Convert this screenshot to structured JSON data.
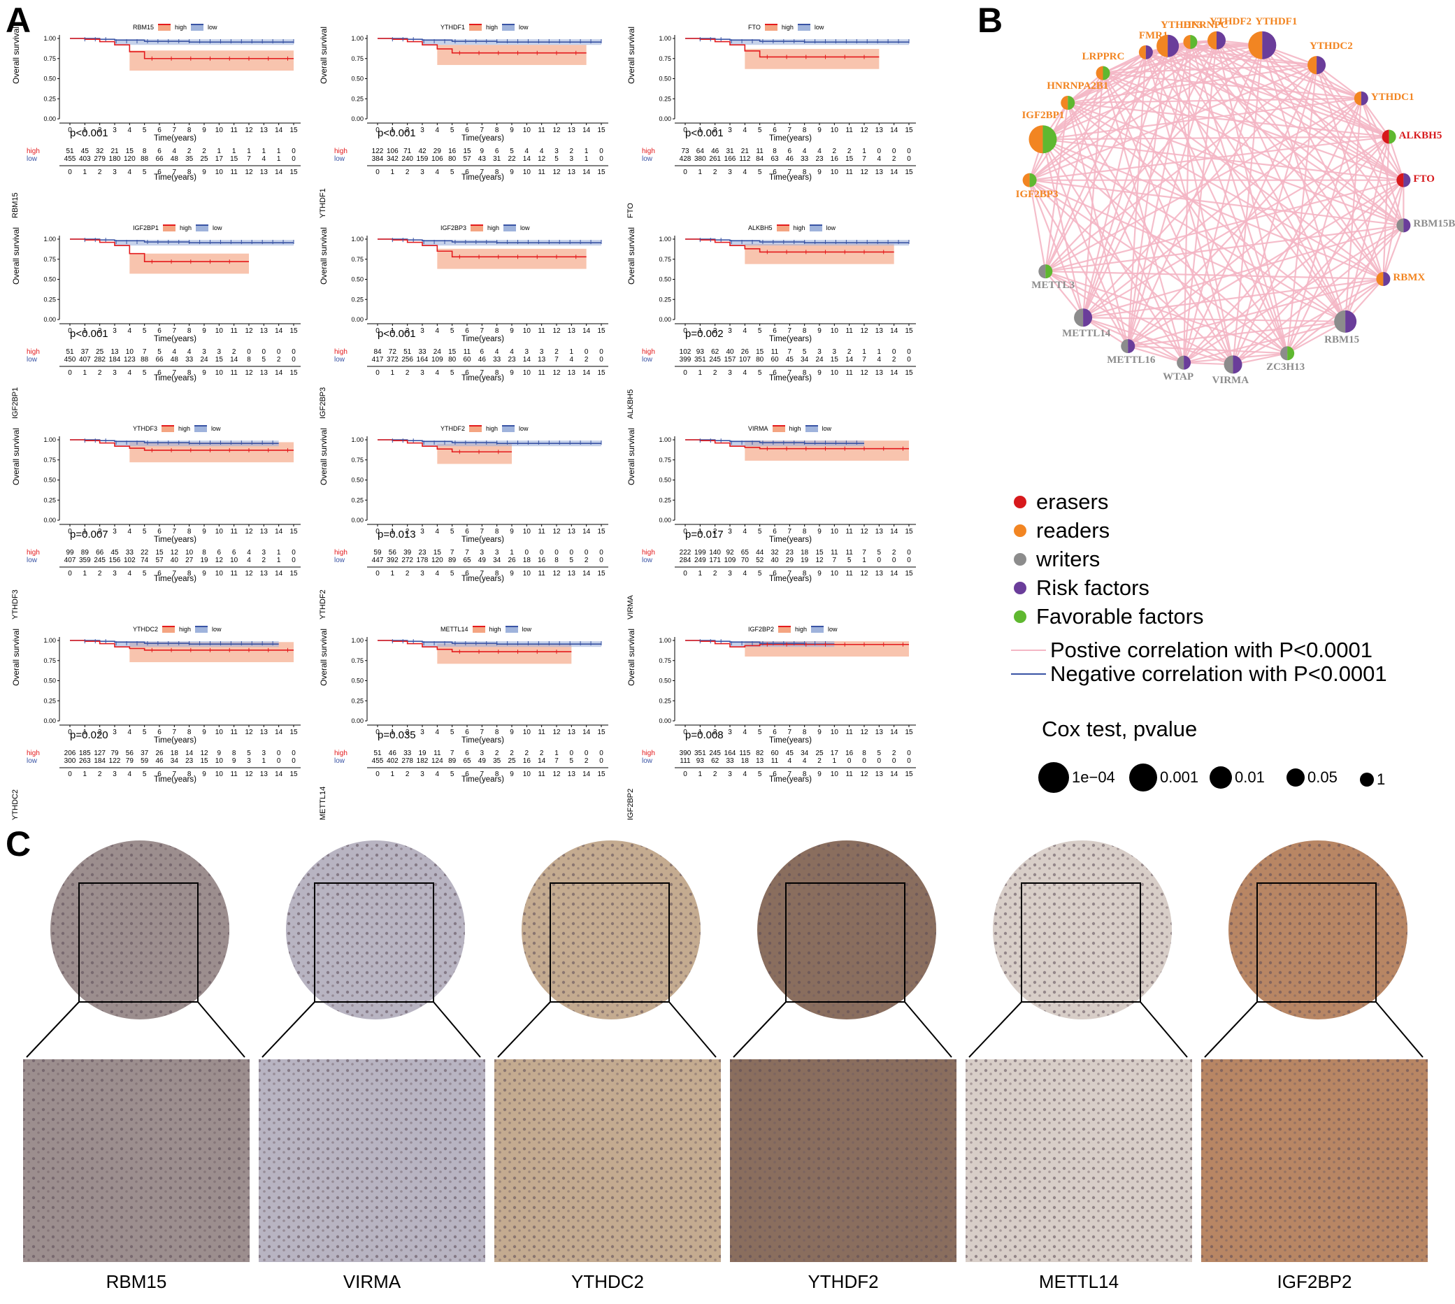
{
  "panels": {
    "a": "A",
    "b": "B",
    "c": "C"
  },
  "km_common": {
    "y_label": "Overall survival",
    "x_label": "Time(years)",
    "y_ticks": [
      "0.00",
      "0.25",
      "0.50",
      "0.75",
      "1.00"
    ],
    "x_ticks": [
      "0",
      "1",
      "2",
      "3",
      "4",
      "5",
      "6",
      "7",
      "8",
      "9",
      "10",
      "11",
      "12",
      "13",
      "14",
      "15"
    ],
    "legend_high": "high",
    "legend_low": "low",
    "risk_high_label": "high",
    "risk_low_label": "low",
    "high_color": "#e41a1c",
    "low_color": "#3953a4"
  },
  "km_plots": [
    {
      "gene": "RBM15",
      "pvalue": "p<0.001",
      "high_end": 0.75,
      "high_max_time": 15,
      "low_max_time": 15,
      "risk_high": [
        "51",
        "45",
        "32",
        "21",
        "15",
        "8",
        "6",
        "4",
        "2",
        "2",
        "1",
        "1",
        "1",
        "1",
        "1",
        "0"
      ],
      "risk_low": [
        "455",
        "403",
        "279",
        "180",
        "120",
        "88",
        "66",
        "48",
        "35",
        "25",
        "17",
        "15",
        "7",
        "4",
        "1",
        "0"
      ]
    },
    {
      "gene": "YTHDF1",
      "pvalue": "p<0.001",
      "high_end": 0.82,
      "high_max_time": 14,
      "low_max_time": 15,
      "risk_high": [
        "122",
        "106",
        "71",
        "42",
        "29",
        "16",
        "15",
        "9",
        "6",
        "5",
        "4",
        "4",
        "3",
        "2",
        "1",
        "0"
      ],
      "risk_low": [
        "384",
        "342",
        "240",
        "159",
        "106",
        "80",
        "57",
        "43",
        "31",
        "22",
        "14",
        "12",
        "5",
        "3",
        "1",
        "0"
      ]
    },
    {
      "gene": "FTO",
      "pvalue": "p<0.001",
      "high_end": 0.77,
      "high_max_time": 13,
      "low_max_time": 15,
      "risk_high": [
        "73",
        "64",
        "46",
        "31",
        "21",
        "11",
        "8",
        "6",
        "4",
        "4",
        "2",
        "2",
        "1",
        "0",
        "0",
        "0"
      ],
      "risk_low": [
        "428",
        "380",
        "261",
        "166",
        "112",
        "84",
        "63",
        "46",
        "33",
        "23",
        "16",
        "15",
        "7",
        "4",
        "2",
        "0"
      ]
    },
    {
      "gene": "IGF2BP1",
      "pvalue": "p<0.001",
      "high_end": 0.72,
      "high_max_time": 12,
      "low_max_time": 15,
      "risk_high": [
        "51",
        "37",
        "25",
        "13",
        "10",
        "7",
        "5",
        "4",
        "4",
        "3",
        "3",
        "2",
        "0",
        "0",
        "0",
        "0"
      ],
      "risk_low": [
        "450",
        "407",
        "282",
        "184",
        "123",
        "88",
        "66",
        "48",
        "33",
        "24",
        "15",
        "14",
        "8",
        "5",
        "2",
        "0"
      ]
    },
    {
      "gene": "IGF2BP3",
      "pvalue": "p<0.001",
      "high_end": 0.78,
      "high_max_time": 14,
      "low_max_time": 15,
      "risk_high": [
        "84",
        "72",
        "51",
        "33",
        "24",
        "15",
        "11",
        "6",
        "4",
        "4",
        "3",
        "3",
        "2",
        "1",
        "0",
        "0"
      ],
      "risk_low": [
        "417",
        "372",
        "256",
        "164",
        "109",
        "80",
        "60",
        "46",
        "33",
        "23",
        "14",
        "13",
        "7",
        "4",
        "2",
        "0"
      ]
    },
    {
      "gene": "ALKBH5",
      "pvalue": "p=0.002",
      "high_end": 0.84,
      "high_max_time": 14,
      "low_max_time": 15,
      "risk_high": [
        "102",
        "93",
        "62",
        "40",
        "26",
        "15",
        "11",
        "7",
        "5",
        "3",
        "3",
        "2",
        "1",
        "1",
        "0",
        "0"
      ],
      "risk_low": [
        "399",
        "351",
        "245",
        "157",
        "107",
        "80",
        "60",
        "45",
        "34",
        "24",
        "15",
        "14",
        "7",
        "4",
        "2",
        "0"
      ]
    },
    {
      "gene": "YTHDF3",
      "pvalue": "p=0.007",
      "high_end": 0.87,
      "high_max_time": 15,
      "low_max_time": 14,
      "risk_high": [
        "99",
        "89",
        "66",
        "45",
        "33",
        "22",
        "15",
        "12",
        "10",
        "8",
        "6",
        "6",
        "4",
        "3",
        "1",
        "0"
      ],
      "risk_low": [
        "407",
        "359",
        "245",
        "156",
        "102",
        "74",
        "57",
        "40",
        "27",
        "19",
        "12",
        "10",
        "4",
        "2",
        "1",
        "0"
      ]
    },
    {
      "gene": "YTHDF2",
      "pvalue": "p=0.013",
      "high_end": 0.85,
      "high_max_time": 9,
      "low_max_time": 15,
      "risk_high": [
        "59",
        "56",
        "39",
        "23",
        "15",
        "7",
        "7",
        "3",
        "3",
        "1",
        "0",
        "0",
        "0",
        "0",
        "0",
        "0"
      ],
      "risk_low": [
        "447",
        "392",
        "272",
        "178",
        "120",
        "89",
        "65",
        "49",
        "34",
        "26",
        "18",
        "16",
        "8",
        "5",
        "2",
        "0"
      ]
    },
    {
      "gene": "VIRMA",
      "pvalue": "p=0.017",
      "high_end": 0.89,
      "high_max_time": 15,
      "low_max_time": 12,
      "risk_high": [
        "222",
        "199",
        "140",
        "92",
        "65",
        "44",
        "32",
        "23",
        "18",
        "15",
        "11",
        "11",
        "7",
        "5",
        "2",
        "0"
      ],
      "risk_low": [
        "284",
        "249",
        "171",
        "109",
        "70",
        "52",
        "40",
        "29",
        "19",
        "12",
        "7",
        "5",
        "1",
        "0",
        "0",
        "0"
      ]
    },
    {
      "gene": "YTHDC2",
      "pvalue": "p=0.020",
      "high_end": 0.88,
      "high_max_time": 15,
      "low_max_time": 14,
      "risk_high": [
        "206",
        "185",
        "127",
        "79",
        "56",
        "37",
        "26",
        "18",
        "14",
        "12",
        "9",
        "8",
        "5",
        "3",
        "0",
        "0"
      ],
      "risk_low": [
        "300",
        "263",
        "184",
        "122",
        "79",
        "59",
        "46",
        "34",
        "23",
        "15",
        "10",
        "9",
        "3",
        "1",
        "0",
        "0"
      ]
    },
    {
      "gene": "METTL14",
      "pvalue": "p=0.035",
      "high_end": 0.86,
      "high_max_time": 13,
      "low_max_time": 15,
      "risk_high": [
        "51",
        "46",
        "33",
        "19",
        "11",
        "7",
        "6",
        "3",
        "2",
        "2",
        "2",
        "2",
        "1",
        "0",
        "0",
        "0"
      ],
      "risk_low": [
        "455",
        "402",
        "278",
        "182",
        "124",
        "89",
        "65",
        "49",
        "35",
        "25",
        "16",
        "14",
        "7",
        "5",
        "2",
        "0"
      ]
    },
    {
      "gene": "IGF2BP2",
      "pvalue": "p=0.008",
      "high_end": 0.95,
      "high_max_time": 15,
      "low_max_time": 10,
      "risk_high": [
        "390",
        "351",
        "245",
        "164",
        "115",
        "82",
        "60",
        "45",
        "34",
        "25",
        "17",
        "16",
        "8",
        "5",
        "2",
        "0"
      ],
      "risk_low": [
        "111",
        "93",
        "62",
        "33",
        "18",
        "13",
        "11",
        "4",
        "4",
        "2",
        "1",
        "0",
        "0",
        "0",
        "0",
        "0"
      ]
    }
  ],
  "network": {
    "nodes": [
      {
        "label": "YTHDF3",
        "role": "reader",
        "risk": true,
        "size": "0.001"
      },
      {
        "label": "YTHDF2",
        "role": "reader",
        "risk": true,
        "size": "0.01"
      },
      {
        "label": "YTHDF1",
        "role": "reader",
        "risk": true,
        "size": "1e-04"
      },
      {
        "label": "YTHDC2",
        "role": "reader",
        "risk": true,
        "size": "0.01"
      },
      {
        "label": "YTHDC1",
        "role": "reader",
        "risk": true,
        "size": "0.05"
      },
      {
        "label": "ALKBH5",
        "role": "eraser",
        "risk": false,
        "size": "0.05"
      },
      {
        "label": "FTO",
        "role": "eraser",
        "risk": true,
        "size": "0.05"
      },
      {
        "label": "RBM15B",
        "role": "writer",
        "risk": true,
        "size": "0.05"
      },
      {
        "label": "RBMX",
        "role": "reader",
        "risk": true,
        "size": "0.05"
      },
      {
        "label": "RBM15",
        "role": "writer",
        "risk": true,
        "size": "0.001"
      },
      {
        "label": "ZC3H13",
        "role": "writer",
        "risk": false,
        "size": "0.05"
      },
      {
        "label": "VIRMA",
        "role": "writer",
        "risk": true,
        "size": "0.01"
      },
      {
        "label": "WTAP",
        "role": "writer",
        "risk": true,
        "size": "0.05"
      },
      {
        "label": "METTL16",
        "role": "writer",
        "risk": true,
        "size": "0.05"
      },
      {
        "label": "METTL14",
        "role": "writer",
        "risk": true,
        "size": "0.01"
      },
      {
        "label": "METTL3",
        "role": "writer",
        "risk": false,
        "size": "0.05"
      },
      {
        "label": "IGF2BP3",
        "role": "reader",
        "risk": false,
        "size": "0.05"
      },
      {
        "label": "IGF2BP1",
        "role": "reader",
        "risk": false,
        "size": "1e-04"
      },
      {
        "label": "HNRNPA2B1",
        "role": "reader",
        "risk": false,
        "size": "0.05"
      },
      {
        "label": "LRPPRC",
        "role": "reader",
        "risk": false,
        "size": "0.05"
      },
      {
        "label": "FMR1",
        "role": "reader",
        "risk": true,
        "size": "0.05"
      },
      {
        "label": "HNRNPC",
        "role": "reader",
        "risk": false,
        "size": "0.05"
      }
    ],
    "role_colors": {
      "eraser": "#d7191c",
      "reader": "#f28522",
      "writer": "#8c8c8c"
    },
    "risk_color": "#6a3d9a",
    "favorable_color": "#5fb830",
    "edge_color": "#f4b6c5"
  },
  "legend": {
    "categories": [
      {
        "label": "erasers",
        "color": "#d7191c"
      },
      {
        "label": "readers",
        "color": "#f28522"
      },
      {
        "label": "writers",
        "color": "#8c8c8c"
      },
      {
        "label": "Risk factors",
        "color": "#6a3d9a"
      },
      {
        "label": "Favorable factors",
        "color": "#5fb830"
      }
    ],
    "correlations": [
      {
        "label": "Postive correlation with P<0.0001",
        "color": "#f4b6c5"
      },
      {
        "label": "Negative correlation with P<0.0001",
        "color": "#3953a4"
      }
    ],
    "cox_title": "Cox test, pvalue",
    "cox_sizes": [
      "1e−04",
      "0.001",
      "0.01",
      "0.05",
      "1"
    ]
  },
  "ihc": {
    "genes": [
      "RBM15",
      "VIRMA",
      "YTHDC2",
      "YTHDF2",
      "METTL14",
      "IGF2BP2"
    ],
    "tissue_colors": [
      "#9c8e8e",
      "#b8b4c2",
      "#c4ab90",
      "#8a6e5e",
      "#d8cec8",
      "#b88664"
    ]
  }
}
